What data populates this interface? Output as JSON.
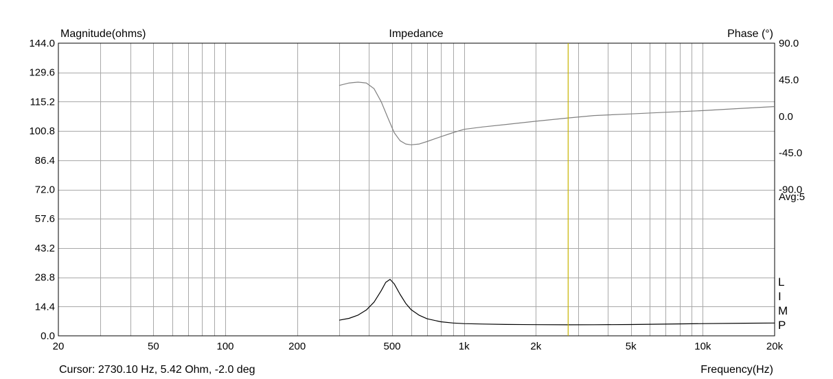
{
  "chart_data": {
    "type": "line",
    "title": "Impedance",
    "ylabel_left": "Magnitude(ohms)",
    "ylabel_right": "Phase (°)",
    "xlabel": "Frequency(Hz)",
    "x_scale": "log",
    "xlim": [
      20,
      20000
    ],
    "ylim_left": [
      0,
      144
    ],
    "ylim_right": [
      -270,
      90
    ],
    "x_ticks": [
      {
        "value": 20,
        "label": "20"
      },
      {
        "value": 50,
        "label": "50"
      },
      {
        "value": 100,
        "label": "100"
      },
      {
        "value": 200,
        "label": "200"
      },
      {
        "value": 500,
        "label": "500"
      },
      {
        "value": 1000,
        "label": "1k"
      },
      {
        "value": 2000,
        "label": "2k"
      },
      {
        "value": 5000,
        "label": "5k"
      },
      {
        "value": 10000,
        "label": "10k"
      },
      {
        "value": 20000,
        "label": "20k"
      }
    ],
    "y_ticks_left": [
      "0.0",
      "14.4",
      "28.8",
      "43.2",
      "57.6",
      "72.0",
      "86.4",
      "100.8",
      "115.2",
      "129.6",
      "144.0"
    ],
    "y_ticks_right": [
      {
        "value": 90,
        "label": "90.0"
      },
      {
        "value": 45,
        "label": "45.0"
      },
      {
        "value": 0,
        "label": "0.0"
      },
      {
        "value": -45,
        "label": "-45.0"
      },
      {
        "value": -90,
        "label": "-90.0"
      }
    ],
    "avg_label": "Avg:5",
    "legend_letters": [
      "L",
      "I",
      "M",
      "P"
    ],
    "grid": true,
    "cursor": {
      "frequency_hz": 2730.1,
      "text": "Cursor: 2730.10 Hz, 5.42 Ohm, -2.0 deg",
      "color": "#c8b400"
    },
    "series": [
      {
        "name": "Magnitude",
        "color": "#000000",
        "axis": "left",
        "x": [
          300,
          330,
          360,
          390,
          420,
          450,
          470,
          490,
          510,
          540,
          570,
          600,
          650,
          700,
          800,
          900,
          1000,
          1200,
          1500,
          2000,
          2730,
          3500,
          5000,
          7000,
          10000,
          15000,
          20000
        ],
        "y": [
          7.7,
          8.6,
          10.2,
          12.7,
          16.6,
          22.2,
          26.3,
          27.8,
          25.6,
          20.4,
          16.0,
          12.9,
          10.1,
          8.4,
          6.9,
          6.3,
          6.0,
          5.8,
          5.6,
          5.5,
          5.42,
          5.45,
          5.55,
          5.75,
          6.0,
          6.2,
          6.3
        ]
      },
      {
        "name": "Phase",
        "color": "#808080",
        "axis": "right",
        "x": [
          300,
          330,
          360,
          390,
          420,
          450,
          480,
          510,
          540,
          570,
          600,
          650,
          700,
          800,
          900,
          1000,
          1200,
          1500,
          2000,
          2730,
          3500,
          5000,
          7000,
          10000,
          15000,
          20000
        ],
        "y": [
          38,
          41,
          42,
          41,
          34,
          18,
          -2,
          -20,
          -30,
          -34,
          -35,
          -34,
          -31,
          -25,
          -20,
          -16,
          -13,
          -10,
          -6,
          -2,
          1,
          3,
          5,
          7,
          10,
          12
        ]
      }
    ]
  },
  "footer": {
    "cursor_text": "Cursor: 2730.10 Hz, 5.42 Ohm, -2.0 deg",
    "frequency_label": "Frequency(Hz)"
  }
}
